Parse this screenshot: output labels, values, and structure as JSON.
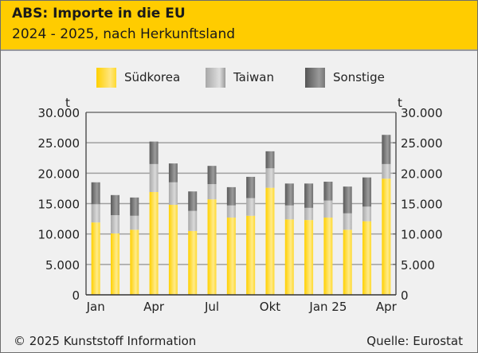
{
  "header": {
    "title": "ABS: Importe in die EU",
    "subtitle": "2024 - 2025, nach Herkunftsland"
  },
  "footer": {
    "copyright": "© 2025 Kunststoff Information",
    "source": "Quelle: Eurostat"
  },
  "colors": {
    "header_bg": "#ffcc00",
    "suedkorea": "#ffd92e",
    "taiwan": "#c8c8c8",
    "sonstige": "#7a7a7a"
  },
  "chart_data": {
    "type": "bar",
    "stacked": true,
    "title": "ABS: Importe in die EU",
    "subtitle": "2024 - 2025, nach Herkunftsland",
    "ylabel_left": "t",
    "ylabel_right": "t",
    "ylim": [
      0,
      30000
    ],
    "yticks": [
      "0",
      "5.000",
      "10.000",
      "15.000",
      "20.000",
      "25.000",
      "30.000"
    ],
    "ytick_values": [
      0,
      5000,
      10000,
      15000,
      20000,
      25000,
      30000
    ],
    "grid": true,
    "legend_position": "top",
    "categories": [
      "Jan 24",
      "Feb 24",
      "Mar 24",
      "Apr 24",
      "May 24",
      "Jun 24",
      "Jul 24",
      "Aug 24",
      "Sep 24",
      "Okt 24",
      "Nov 24",
      "Dez 24",
      "Jan 25",
      "Feb 25",
      "Mar 25",
      "Apr 25"
    ],
    "xtick_labels": [
      {
        "index": 0,
        "label": "Jan"
      },
      {
        "index": 3,
        "label": "Apr"
      },
      {
        "index": 6,
        "label": "Jul"
      },
      {
        "index": 9,
        "label": "Okt"
      },
      {
        "index": 12,
        "label": "Jan 25"
      },
      {
        "index": 15,
        "label": "Apr"
      }
    ],
    "series": [
      {
        "name": "Südkorea",
        "key": "suedkorea",
        "values": [
          11900,
          10100,
          10700,
          16900,
          14800,
          10500,
          15700,
          12700,
          13000,
          17600,
          12400,
          12300,
          12700,
          10700,
          12100,
          19100
        ]
      },
      {
        "name": "Taiwan",
        "key": "taiwan",
        "values": [
          3000,
          3000,
          2300,
          4600,
          3700,
          3300,
          2500,
          2000,
          2900,
          3200,
          2300,
          2000,
          2800,
          2700,
          2400,
          2400
        ]
      },
      {
        "name": "Sonstige",
        "key": "sonstige",
        "values": [
          3600,
          3300,
          3000,
          3700,
          3100,
          3200,
          3000,
          3000,
          3500,
          2800,
          3600,
          4000,
          3100,
          4400,
          4800,
          4800
        ]
      }
    ]
  }
}
